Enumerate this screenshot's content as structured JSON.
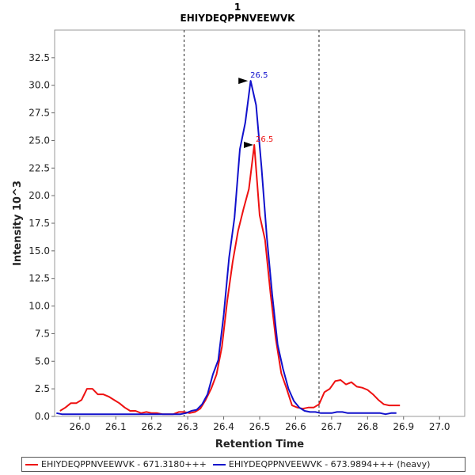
{
  "chart_data": {
    "type": "line",
    "title": "1",
    "subtitle": "EHIYDEQPPNVEEWVK",
    "xlabel": "Retention Time",
    "ylabel": "Intensity 10^3",
    "xlim": [
      25.93,
      27.07
    ],
    "ylim": [
      0,
      35
    ],
    "x_ticks": [
      "26.0",
      "26.1",
      "26.2",
      "26.3",
      "26.4",
      "26.5",
      "26.6",
      "26.7",
      "26.8",
      "26.9",
      "27.0"
    ],
    "y_ticks": [
      "0.0",
      "2.5",
      "5.0",
      "7.5",
      "10.0",
      "12.5",
      "15.0",
      "17.5",
      "20.0",
      "22.5",
      "25.0",
      "27.5",
      "30.0",
      "32.5"
    ],
    "boundaries": [
      26.29,
      26.665
    ],
    "series": [
      {
        "name": "EHIYDEQPPNVEEWVK - 671.3180+++",
        "color": "#ee1111",
        "peak_label": "26.5",
        "peak": [
          26.5,
          24.6
        ],
        "x": [
          25.945,
          25.96,
          25.975,
          25.99,
          26.005,
          26.02,
          26.035,
          26.05,
          26.065,
          26.08,
          26.095,
          26.11,
          26.125,
          26.14,
          26.155,
          26.17,
          26.185,
          26.2,
          26.215,
          26.23,
          26.245,
          26.26,
          26.275,
          26.29,
          26.305,
          26.32,
          26.335,
          26.35,
          26.365,
          26.38,
          26.395,
          26.41,
          26.425,
          26.44,
          26.455,
          26.47,
          26.485,
          26.5,
          26.515,
          26.53,
          26.545,
          26.56,
          26.575,
          26.59,
          26.605,
          26.62,
          26.635,
          26.65,
          26.665,
          26.68,
          26.695,
          26.71,
          26.725,
          26.74,
          26.755,
          26.77,
          26.785,
          26.8,
          26.815,
          26.83,
          26.845,
          26.86,
          26.875,
          26.89
        ],
        "values": [
          0.5,
          0.8,
          1.2,
          1.2,
          1.5,
          2.5,
          2.5,
          2.0,
          2.0,
          1.8,
          1.5,
          1.2,
          0.8,
          0.5,
          0.5,
          0.3,
          0.4,
          0.3,
          0.3,
          0.2,
          0.2,
          0.2,
          0.4,
          0.4,
          0.3,
          0.4,
          0.7,
          1.5,
          2.5,
          3.8,
          6.3,
          10.5,
          14.0,
          16.8,
          18.8,
          20.6,
          24.6,
          18.2,
          16.0,
          11.2,
          7.0,
          3.9,
          2.5,
          1.0,
          0.8,
          0.7,
          0.8,
          0.8,
          1.1,
          2.2,
          2.5,
          3.2,
          3.3,
          2.9,
          3.1,
          2.7,
          2.6,
          2.4,
          2.0,
          1.5,
          1.1,
          1.0,
          1.0,
          1.0
        ]
      },
      {
        "name": "EHIYDEQPPNVEEWVK - 673.9894+++ (heavy)",
        "color": "#1111cc",
        "peak_label": "26.5",
        "peak": [
          26.485,
          30.4
        ],
        "x": [
          25.935,
          25.95,
          25.965,
          25.98,
          25.995,
          26.01,
          26.025,
          26.04,
          26.055,
          26.07,
          26.085,
          26.1,
          26.115,
          26.13,
          26.145,
          26.16,
          26.175,
          26.19,
          26.205,
          26.22,
          26.235,
          26.25,
          26.265,
          26.28,
          26.295,
          26.31,
          26.325,
          26.34,
          26.355,
          26.37,
          26.385,
          26.4,
          26.415,
          26.43,
          26.445,
          26.46,
          26.475,
          26.49,
          26.505,
          26.52,
          26.535,
          26.55,
          26.565,
          26.58,
          26.595,
          26.61,
          26.625,
          26.64,
          26.655,
          26.67,
          26.685,
          26.7,
          26.715,
          26.73,
          26.745,
          26.76,
          26.775,
          26.79,
          26.805,
          26.82,
          26.835,
          26.85,
          26.865,
          26.88
        ],
        "values": [
          0.3,
          0.2,
          0.2,
          0.2,
          0.2,
          0.2,
          0.2,
          0.2,
          0.2,
          0.2,
          0.2,
          0.2,
          0.2,
          0.2,
          0.2,
          0.2,
          0.2,
          0.2,
          0.2,
          0.2,
          0.2,
          0.2,
          0.2,
          0.2,
          0.3,
          0.5,
          0.6,
          1.1,
          2.0,
          3.8,
          5.1,
          9.2,
          14.4,
          18.0,
          24.2,
          26.6,
          30.4,
          28.2,
          22.6,
          16.2,
          11.0,
          6.5,
          4.3,
          2.5,
          1.4,
          0.8,
          0.5,
          0.4,
          0.4,
          0.3,
          0.3,
          0.3,
          0.4,
          0.4,
          0.3,
          0.3,
          0.3,
          0.3,
          0.3,
          0.3,
          0.3,
          0.2,
          0.3,
          0.3
        ]
      }
    ],
    "legend_position": "bottom",
    "grid": false
  }
}
